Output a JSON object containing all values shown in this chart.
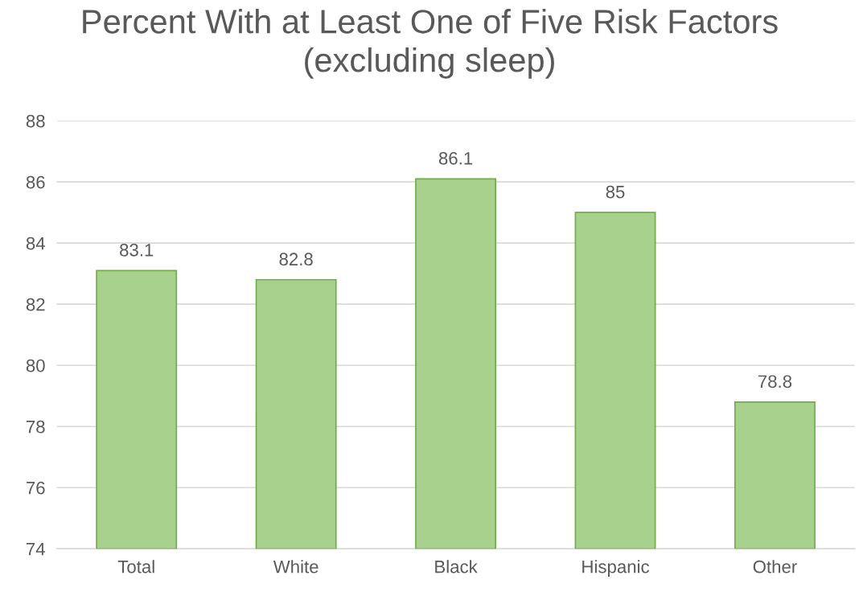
{
  "chart_data": {
    "type": "bar",
    "title": "Percent With at Least One of Five Risk Factors (excluding sleep)",
    "categories": [
      "Total",
      "White",
      "Black",
      "Hispanic",
      "Other"
    ],
    "values": [
      83.1,
      82.8,
      86.1,
      85,
      78.8
    ],
    "color": "#a9d18e",
    "ylim": [
      74,
      88
    ],
    "yticks": [
      74,
      76,
      78,
      80,
      82,
      84,
      86,
      88
    ],
    "grid": "y",
    "data_labels": true
  }
}
